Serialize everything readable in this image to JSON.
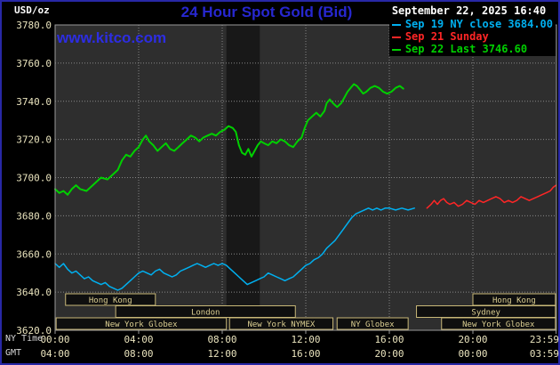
{
  "header": {
    "unit_label": "USD/oz",
    "title": "24 Hour Spot Gold (Bid)",
    "datetime": "September 22, 2025 16:40",
    "watermark": "www.kitco.com"
  },
  "legend": {
    "items": [
      {
        "label": "Sep 19 NY close 3684.00",
        "color": "#00b0f0"
      },
      {
        "label": "Sep 21 Sunday",
        "color": "#ff2626"
      },
      {
        "label": "Sep 22 Last 3746.60",
        "color": "#00d000"
      }
    ]
  },
  "footer": {
    "ny_time": "NY Time",
    "gmt": "GMT"
  },
  "colors": {
    "background": "#000000",
    "plot_bg": "#2e2e2e",
    "band": "#181818",
    "grid": "#878787",
    "plot_border": "#9a9a9a",
    "axis_text": "#e9e3bd",
    "session_box": "#c9b878",
    "session_text": "#dccf92",
    "title_blue": "#2727d0",
    "watermark_blue": "#2d2de2",
    "frame_border": "#2828a6"
  },
  "chart_data": {
    "type": "line",
    "title": "24 Hour Spot Gold (Bid)",
    "ylabel": "USD/oz",
    "ylim": [
      3620,
      3780
    ],
    "xlim_hours": [
      0,
      24
    ],
    "grid": true,
    "legend_position": "top-right",
    "y_ticks": [
      3620,
      3640,
      3660,
      3680,
      3700,
      3720,
      3740,
      3760,
      3780
    ],
    "x_ticks": [
      {
        "hour": 0,
        "ny": "00:00",
        "gmt": "04:00"
      },
      {
        "hour": 4,
        "ny": "04:00",
        "gmt": "08:00"
      },
      {
        "hour": 8,
        "ny": "08:00",
        "gmt": "12:00"
      },
      {
        "hour": 12,
        "ny": "12:00",
        "gmt": "16:00"
      },
      {
        "hour": 16,
        "ny": "16:00",
        "gmt": "20:00"
      },
      {
        "hour": 20,
        "ny": "20:00",
        "gmt": "00:00"
      },
      {
        "hour": 23.983,
        "ny": "23:59",
        "gmt": "03:59"
      }
    ],
    "shaded_band_hours": [
      8.2,
      9.8
    ],
    "series": [
      {
        "id": "sep19",
        "name": "Sep 19 NY close",
        "close": 3684.0,
        "color": "#00b0f0",
        "points": [
          [
            0.0,
            3655
          ],
          [
            0.2,
            3653
          ],
          [
            0.4,
            3655
          ],
          [
            0.6,
            3652
          ],
          [
            0.8,
            3650
          ],
          [
            1.0,
            3651
          ],
          [
            1.2,
            3649
          ],
          [
            1.4,
            3647
          ],
          [
            1.6,
            3648
          ],
          [
            1.8,
            3646
          ],
          [
            2.0,
            3645
          ],
          [
            2.2,
            3644
          ],
          [
            2.4,
            3645
          ],
          [
            2.6,
            3643
          ],
          [
            2.8,
            3642
          ],
          [
            3.0,
            3641
          ],
          [
            3.2,
            3642
          ],
          [
            3.4,
            3644
          ],
          [
            3.6,
            3646
          ],
          [
            3.8,
            3648
          ],
          [
            4.0,
            3650
          ],
          [
            4.2,
            3651
          ],
          [
            4.4,
            3650
          ],
          [
            4.6,
            3649
          ],
          [
            4.8,
            3651
          ],
          [
            5.0,
            3652
          ],
          [
            5.2,
            3650
          ],
          [
            5.4,
            3649
          ],
          [
            5.6,
            3648
          ],
          [
            5.8,
            3649
          ],
          [
            6.0,
            3651
          ],
          [
            6.2,
            3652
          ],
          [
            6.4,
            3653
          ],
          [
            6.6,
            3654
          ],
          [
            6.8,
            3655
          ],
          [
            7.0,
            3654
          ],
          [
            7.2,
            3653
          ],
          [
            7.4,
            3654
          ],
          [
            7.6,
            3655
          ],
          [
            7.8,
            3654
          ],
          [
            8.0,
            3655
          ],
          [
            8.2,
            3654
          ],
          [
            8.4,
            3652
          ],
          [
            8.6,
            3650
          ],
          [
            8.8,
            3648
          ],
          [
            9.0,
            3646
          ],
          [
            9.2,
            3644
          ],
          [
            9.4,
            3645
          ],
          [
            9.6,
            3646
          ],
          [
            9.8,
            3647
          ],
          [
            10.0,
            3648
          ],
          [
            10.2,
            3650
          ],
          [
            10.4,
            3649
          ],
          [
            10.6,
            3648
          ],
          [
            10.8,
            3647
          ],
          [
            11.0,
            3646
          ],
          [
            11.2,
            3647
          ],
          [
            11.4,
            3648
          ],
          [
            11.6,
            3650
          ],
          [
            11.8,
            3652
          ],
          [
            12.0,
            3654
          ],
          [
            12.2,
            3655
          ],
          [
            12.4,
            3657
          ],
          [
            12.6,
            3658
          ],
          [
            12.8,
            3660
          ],
          [
            13.0,
            3663
          ],
          [
            13.2,
            3665
          ],
          [
            13.4,
            3667
          ],
          [
            13.6,
            3670
          ],
          [
            13.8,
            3673
          ],
          [
            14.0,
            3676
          ],
          [
            14.2,
            3679
          ],
          [
            14.4,
            3681
          ],
          [
            14.6,
            3682
          ],
          [
            14.8,
            3683
          ],
          [
            15.0,
            3684
          ],
          [
            15.2,
            3683
          ],
          [
            15.4,
            3684
          ],
          [
            15.6,
            3683
          ],
          [
            15.8,
            3684
          ],
          [
            16.0,
            3684
          ],
          [
            16.3,
            3683
          ],
          [
            16.6,
            3684
          ],
          [
            16.9,
            3683
          ],
          [
            17.2,
            3684
          ]
        ]
      },
      {
        "id": "sep21",
        "name": "Sep 21 Sunday",
        "color": "#ff2626",
        "points": [
          [
            17.8,
            3684
          ],
          [
            18.0,
            3686
          ],
          [
            18.15,
            3688
          ],
          [
            18.3,
            3686
          ],
          [
            18.45,
            3688
          ],
          [
            18.6,
            3689
          ],
          [
            18.75,
            3687
          ],
          [
            18.9,
            3686
          ],
          [
            19.1,
            3687
          ],
          [
            19.3,
            3685
          ],
          [
            19.5,
            3686
          ],
          [
            19.7,
            3688
          ],
          [
            19.9,
            3687
          ],
          [
            20.1,
            3686
          ],
          [
            20.3,
            3688
          ],
          [
            20.5,
            3687
          ],
          [
            20.7,
            3688
          ],
          [
            20.9,
            3689
          ],
          [
            21.1,
            3690
          ],
          [
            21.3,
            3689
          ],
          [
            21.5,
            3687
          ],
          [
            21.7,
            3688
          ],
          [
            21.9,
            3687
          ],
          [
            22.1,
            3688
          ],
          [
            22.3,
            3690
          ],
          [
            22.5,
            3689
          ],
          [
            22.7,
            3688
          ],
          [
            22.9,
            3689
          ],
          [
            23.1,
            3690
          ],
          [
            23.3,
            3691
          ],
          [
            23.5,
            3692
          ],
          [
            23.7,
            3693
          ],
          [
            23.85,
            3695
          ],
          [
            23.98,
            3696
          ]
        ]
      },
      {
        "id": "sep22",
        "name": "Sep 22 Last",
        "last": 3746.6,
        "color": "#00d000",
        "points": [
          [
            0.0,
            3694
          ],
          [
            0.2,
            3692
          ],
          [
            0.4,
            3693
          ],
          [
            0.6,
            3691
          ],
          [
            0.8,
            3694
          ],
          [
            1.0,
            3696
          ],
          [
            1.2,
            3694
          ],
          [
            1.5,
            3693
          ],
          [
            1.8,
            3696
          ],
          [
            2.0,
            3698
          ],
          [
            2.2,
            3700
          ],
          [
            2.5,
            3699
          ],
          [
            2.8,
            3702
          ],
          [
            3.0,
            3704
          ],
          [
            3.2,
            3709
          ],
          [
            3.4,
            3712
          ],
          [
            3.6,
            3711
          ],
          [
            3.8,
            3714
          ],
          [
            4.0,
            3716
          ],
          [
            4.2,
            3720
          ],
          [
            4.35,
            3722
          ],
          [
            4.5,
            3719
          ],
          [
            4.7,
            3717
          ],
          [
            4.9,
            3714
          ],
          [
            5.1,
            3716
          ],
          [
            5.3,
            3718
          ],
          [
            5.5,
            3715
          ],
          [
            5.7,
            3714
          ],
          [
            5.9,
            3716
          ],
          [
            6.1,
            3718
          ],
          [
            6.3,
            3720
          ],
          [
            6.5,
            3722
          ],
          [
            6.7,
            3721
          ],
          [
            6.9,
            3719
          ],
          [
            7.1,
            3721
          ],
          [
            7.3,
            3722
          ],
          [
            7.5,
            3723
          ],
          [
            7.7,
            3722
          ],
          [
            7.9,
            3724
          ],
          [
            8.1,
            3725
          ],
          [
            8.3,
            3727
          ],
          [
            8.5,
            3726
          ],
          [
            8.65,
            3724
          ],
          [
            8.8,
            3717
          ],
          [
            8.95,
            3713
          ],
          [
            9.1,
            3712
          ],
          [
            9.25,
            3715
          ],
          [
            9.4,
            3711
          ],
          [
            9.55,
            3714
          ],
          [
            9.7,
            3717
          ],
          [
            9.85,
            3719
          ],
          [
            10.0,
            3718
          ],
          [
            10.2,
            3717
          ],
          [
            10.4,
            3719
          ],
          [
            10.6,
            3718
          ],
          [
            10.8,
            3720
          ],
          [
            11.0,
            3719
          ],
          [
            11.2,
            3717
          ],
          [
            11.4,
            3716
          ],
          [
            11.6,
            3719
          ],
          [
            11.8,
            3721
          ],
          [
            11.95,
            3726
          ],
          [
            12.1,
            3730
          ],
          [
            12.3,
            3732
          ],
          [
            12.5,
            3734
          ],
          [
            12.7,
            3732
          ],
          [
            12.9,
            3735
          ],
          [
            13.0,
            3739
          ],
          [
            13.15,
            3741
          ],
          [
            13.3,
            3739
          ],
          [
            13.5,
            3737
          ],
          [
            13.7,
            3739
          ],
          [
            13.85,
            3742
          ],
          [
            14.0,
            3745
          ],
          [
            14.15,
            3747
          ],
          [
            14.3,
            3749
          ],
          [
            14.45,
            3748
          ],
          [
            14.6,
            3746
          ],
          [
            14.75,
            3744
          ],
          [
            14.9,
            3745
          ],
          [
            15.1,
            3747
          ],
          [
            15.3,
            3748
          ],
          [
            15.5,
            3747
          ],
          [
            15.7,
            3745
          ],
          [
            15.9,
            3744
          ],
          [
            16.1,
            3745
          ],
          [
            16.3,
            3747
          ],
          [
            16.5,
            3748
          ],
          [
            16.67,
            3746.6
          ]
        ]
      }
    ],
    "sessions": [
      {
        "label": "Hong Kong",
        "row": 0,
        "start": 0.5,
        "end": 4.8
      },
      {
        "label": "Hong Kong",
        "row": 0,
        "start": 20.0,
        "end": 23.95
      },
      {
        "label": "London",
        "row": 1,
        "start": 2.9,
        "end": 11.5
      },
      {
        "label": "Sydney",
        "row": 1,
        "start": 17.3,
        "end": 23.95
      },
      {
        "label": "New York Globex",
        "row": 2,
        "start": 0.05,
        "end": 8.2
      },
      {
        "label": "New York NYMEX",
        "row": 2,
        "start": 8.35,
        "end": 13.3
      },
      {
        "label": "NY Globex",
        "row": 2,
        "start": 13.5,
        "end": 16.9
      },
      {
        "label": "New York Globex",
        "row": 2,
        "start": 18.5,
        "end": 23.95
      }
    ]
  }
}
